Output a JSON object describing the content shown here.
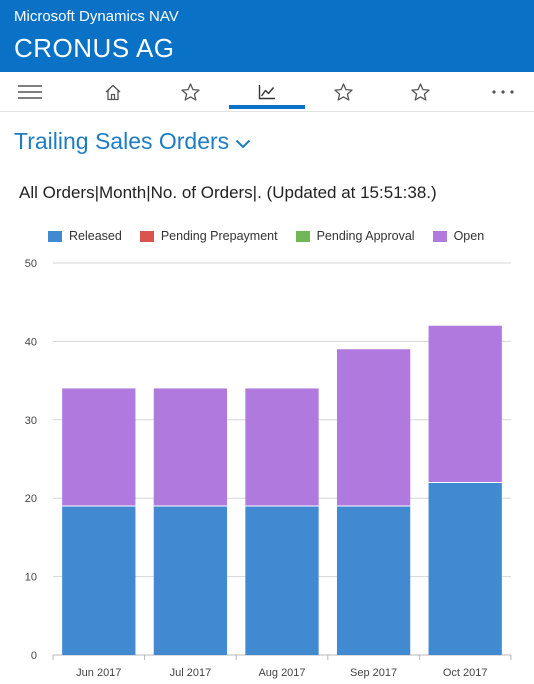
{
  "app": {
    "name": "Microsoft Dynamics NAV",
    "company": "CRONUS AG"
  },
  "nav": {
    "items": [
      {
        "icon": "menu-icon"
      },
      {
        "icon": "home-icon"
      },
      {
        "icon": "star-icon"
      },
      {
        "icon": "chart-icon",
        "selected": true
      },
      {
        "icon": "star-icon"
      },
      {
        "icon": "star-icon"
      },
      {
        "icon": "more-icon"
      }
    ],
    "accent_color": "#0a72c6"
  },
  "page": {
    "title": "Trailing Sales Orders"
  },
  "chart_caption": "All Orders|Month|No. of Orders|. (Updated at 15:51:38.)",
  "legend": [
    {
      "label": "Released",
      "color": "#4189d0"
    },
    {
      "label": "Pending Prepayment",
      "color": "#d9534f"
    },
    {
      "label": "Pending Approval",
      "color": "#6fb855"
    },
    {
      "label": "Open",
      "color": "#b079dd"
    }
  ],
  "chart_data": {
    "type": "bar",
    "stacked": true,
    "categories": [
      "Jun 2017",
      "Jul 2017",
      "Aug 2017",
      "Sep 2017",
      "Oct 2017"
    ],
    "series": [
      {
        "name": "Released",
        "values": [
          19,
          19,
          19,
          19,
          22
        ],
        "color": "#4189d0"
      },
      {
        "name": "Pending Prepayment",
        "values": [
          0,
          0,
          0,
          0,
          0
        ],
        "color": "#d9534f"
      },
      {
        "name": "Pending Approval",
        "values": [
          0,
          0,
          0,
          0,
          0
        ],
        "color": "#6fb855"
      },
      {
        "name": "Open",
        "values": [
          15,
          15,
          15,
          20,
          20
        ],
        "color": "#b079dd"
      }
    ],
    "ylim": [
      0,
      50
    ],
    "yticks": [
      0,
      10,
      20,
      30,
      40,
      50
    ],
    "grid": true,
    "legend_position": "top"
  }
}
